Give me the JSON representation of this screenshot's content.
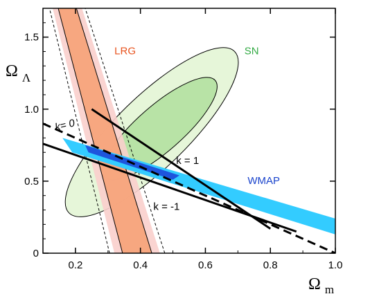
{
  "chart_data": {
    "type": "area",
    "x_axis": {
      "label_main": "Ω",
      "label_sub": "m",
      "range": [
        0.1,
        1.0
      ],
      "ticks": [
        0.2,
        0.4,
        0.6,
        0.8,
        1.0
      ],
      "tick_labels": [
        "0.2",
        "0.4",
        "0.6",
        "0.8",
        "1.0"
      ]
    },
    "y_axis": {
      "label_main": "Ω",
      "label_sub": "Λ",
      "range": [
        0,
        1.7
      ],
      "ticks": [
        0,
        0.5,
        1.0,
        1.5
      ],
      "tick_labels": [
        "0",
        "0.5",
        "1.0",
        "1.5"
      ]
    },
    "grid": false,
    "colors": {
      "lrg_outer": "#f9cfcc",
      "lrg_inner": "#f7a47b",
      "sn_outer": "#e6f6d9",
      "sn_inner": "#b8e3a6",
      "wmap_outer": "#33ccff",
      "wmap_inner": "#1e55dd",
      "lrg_text": "#e8531e",
      "sn_text": "#33aa44",
      "wmap_text": "#1a44cc"
    },
    "annotations": [
      {
        "id": "lrg",
        "text": "LRG",
        "x": 0.32,
        "y": 1.38
      },
      {
        "id": "sn",
        "text": "SN",
        "x": 0.72,
        "y": 1.38
      },
      {
        "id": "wmap",
        "text": "WMAP",
        "x": 0.73,
        "y": 0.48
      },
      {
        "id": "k1",
        "text": "k = 1",
        "x": 0.51,
        "y": 0.62
      },
      {
        "id": "k0",
        "text": "k= 0",
        "x": 0.14,
        "y": 0.85
      },
      {
        "id": "km1",
        "text": "k = -1",
        "x": 0.44,
        "y": 0.3
      }
    ],
    "curves": {
      "k_zero": [
        [
          0.1,
          0.9
        ],
        [
          1.0,
          0.0
        ]
      ],
      "k_minus_one": [
        [
          0.1,
          0.76
        ],
        [
          0.88,
          0.15
        ]
      ],
      "k_one": [
        [
          0.25,
          1.0
        ],
        [
          0.8,
          0.17
        ]
      ]
    },
    "regions": {
      "lrg_outer": {
        "x_center_at_y0": 0.39,
        "x_center_at_ytop": 0.175,
        "half_width_at_y0": 0.07,
        "half_width_at_ytop": 0.045
      },
      "lrg_inner": {
        "x_center_at_y0": 0.39,
        "x_center_at_ytop": 0.175,
        "half_width_at_y0": 0.045,
        "half_width_at_ytop": 0.028
      },
      "lrg_dashed": {
        "x_center_at_y0": 0.39,
        "x_center_at_ytop": 0.175,
        "half_width_at_y0": 0.085,
        "half_width_at_ytop": 0.055
      },
      "sn_outer": {
        "center": [
          0.42,
          0.82
        ],
        "major_axis": [
          [
            0.69,
            1.4
          ],
          [
            0.18,
            0.28
          ]
        ],
        "minor_half": 0.11
      },
      "sn_inner": {
        "center": [
          0.45,
          0.88
        ],
        "major_axis": [
          [
            0.63,
            1.2
          ],
          [
            0.29,
            0.53
          ]
        ],
        "minor_half": 0.07
      },
      "wmap_outer": [
        [
          0.16,
          0.8
        ],
        [
          1.0,
          0.24
        ],
        [
          1.0,
          0.13
        ],
        [
          0.19,
          0.7
        ]
      ],
      "wmap_inner": [
        [
          0.23,
          0.75
        ],
        [
          0.52,
          0.54
        ],
        [
          0.5,
          0.51
        ],
        [
          0.24,
          0.7
        ]
      ]
    }
  }
}
